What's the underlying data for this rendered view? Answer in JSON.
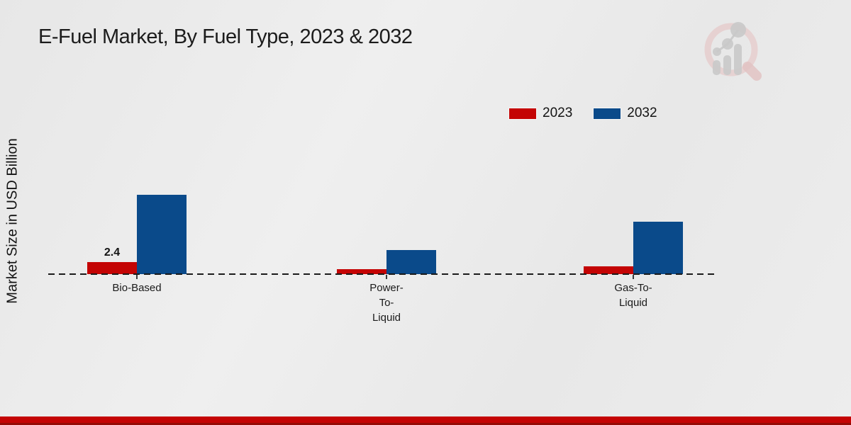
{
  "chart_data": {
    "type": "bar",
    "title": "E-Fuel Market, By Fuel Type, 2023 & 2032",
    "ylabel": "Market Size in USD Billion",
    "xlabel": "",
    "categories": [
      "Bio-Based",
      "Power-To-Liquid",
      "Gas-To-Liquid"
    ],
    "category_label_lines": [
      [
        "Bio-Based"
      ],
      [
        "Power-",
        "To-",
        "Liquid"
      ],
      [
        "Gas-To-",
        "Liquid"
      ]
    ],
    "series": [
      {
        "name": "2023",
        "color": "#c40404",
        "values": [
          2.4,
          1.0,
          1.5
        ],
        "value_labels": [
          "2.4",
          "",
          ""
        ]
      },
      {
        "name": "2032",
        "color": "#0a4a8a",
        "values": [
          15.8,
          4.8,
          10.4
        ],
        "value_labels": [
          "",
          "",
          ""
        ]
      }
    ],
    "legend_position": "top-right",
    "grid": false,
    "baseline_style": "dashed-black",
    "ylim": [
      0,
      18
    ],
    "units": "USD Billion"
  },
  "watermark": {
    "icon": "magnifier-bar-chart-logo",
    "ring_color": "#e6caca",
    "glyph_color": "#c9c9c9"
  },
  "footer": {
    "band_color": "#c40404"
  }
}
